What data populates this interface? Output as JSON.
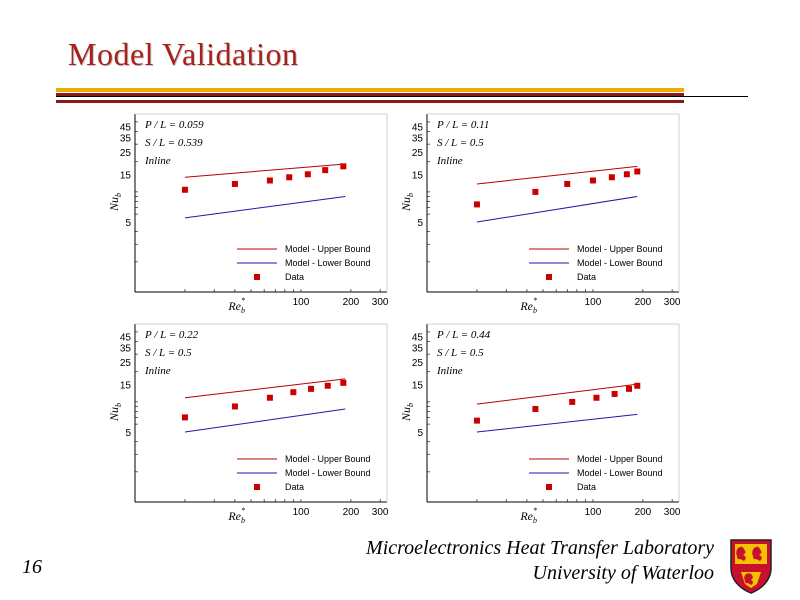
{
  "slide": {
    "title": "Model Validation",
    "page_number": "16",
    "footer_line1": "Microelectronics Heat Transfer Laboratory",
    "footer_line2": "University of Waterloo"
  },
  "colors": {
    "title": "#a8201a",
    "upper_bound": "#b80000",
    "lower_bound": "#1a1aaa",
    "data": "#cc0000",
    "rule_red": "#8b1a1a",
    "rule_gold": "#e8b000"
  },
  "chart_data": [
    {
      "type": "scatter",
      "annotations": [
        "P / L = 0.059",
        "S / L = 0.539",
        "Inline"
      ],
      "xlabel": "Re_b^*",
      "ylabel": "Nu_b",
      "xticks": [
        "100",
        "200",
        "300"
      ],
      "yticks": [
        "5",
        "15",
        "25",
        "35",
        "45"
      ],
      "legend": [
        "Model - Upper Bound",
        "Model - Lower Bound",
        "Data"
      ],
      "legend_position": "bottom-right",
      "grid": false,
      "series": [
        {
          "name": "Model - Upper Bound",
          "x": [
            20,
            185
          ],
          "y": [
            14,
            19
          ]
        },
        {
          "name": "Model - Lower Bound",
          "x": [
            20,
            185
          ],
          "y": [
            5.5,
            9
          ]
        },
        {
          "name": "Data",
          "x": [
            20,
            40,
            65,
            85,
            110,
            140,
            180
          ],
          "y": [
            10.5,
            12,
            13,
            14,
            15,
            16.5,
            18
          ]
        }
      ]
    },
    {
      "type": "scatter",
      "annotations": [
        "P / L = 0.11",
        "S / L = 0.5",
        "Inline"
      ],
      "xlabel": "Re_b^*",
      "ylabel": "Nu_b",
      "xticks": [
        "100",
        "200",
        "300"
      ],
      "yticks": [
        "5",
        "15",
        "25",
        "35",
        "45"
      ],
      "legend": [
        "Model - Upper Bound",
        "Model - Lower Bound",
        "Data"
      ],
      "legend_position": "bottom-right",
      "grid": false,
      "series": [
        {
          "name": "Model - Upper Bound",
          "x": [
            20,
            185
          ],
          "y": [
            12,
            18
          ]
        },
        {
          "name": "Model - Lower Bound",
          "x": [
            20,
            185
          ],
          "y": [
            5,
            9
          ]
        },
        {
          "name": "Data",
          "x": [
            20,
            45,
            70,
            100,
            130,
            160,
            185
          ],
          "y": [
            7.5,
            10,
            12,
            13,
            14,
            15,
            16
          ]
        }
      ]
    },
    {
      "type": "scatter",
      "annotations": [
        "P / L = 0.22",
        "S / L = 0.5",
        "Inline"
      ],
      "xlabel": "Re_b^*",
      "ylabel": "Nu_b",
      "xticks": [
        "100",
        "200",
        "300"
      ],
      "yticks": [
        "5",
        "15",
        "25",
        "35",
        "45"
      ],
      "legend": [
        "Model - Upper Bound",
        "Model - Lower Bound",
        "Data"
      ],
      "legend_position": "bottom-right",
      "grid": false,
      "series": [
        {
          "name": "Model - Upper Bound",
          "x": [
            20,
            185
          ],
          "y": [
            11,
            17
          ]
        },
        {
          "name": "Model - Lower Bound",
          "x": [
            20,
            185
          ],
          "y": [
            5,
            8.5
          ]
        },
        {
          "name": "Data",
          "x": [
            20,
            40,
            65,
            90,
            115,
            145,
            180
          ],
          "y": [
            7,
            9,
            11,
            12.5,
            13.5,
            14.5,
            15.5
          ]
        }
      ]
    },
    {
      "type": "scatter",
      "annotations": [
        "P / L = 0.44",
        "S / L = 0.5",
        "Inline"
      ],
      "xlabel": "Re_b^*",
      "ylabel": "Nu_b",
      "xticks": [
        "100",
        "200",
        "300"
      ],
      "yticks": [
        "5",
        "15",
        "25",
        "35",
        "45"
      ],
      "legend": [
        "Model - Upper Bound",
        "Model - Lower Bound",
        "Data"
      ],
      "legend_position": "bottom-right",
      "grid": false,
      "series": [
        {
          "name": "Model - Upper Bound",
          "x": [
            20,
            185
          ],
          "y": [
            9.5,
            15
          ]
        },
        {
          "name": "Model - Lower Bound",
          "x": [
            20,
            185
          ],
          "y": [
            5,
            7.5
          ]
        },
        {
          "name": "Data",
          "x": [
            20,
            45,
            75,
            105,
            135,
            165,
            185
          ],
          "y": [
            6.5,
            8.5,
            10,
            11,
            12,
            13.5,
            14.5
          ]
        }
      ]
    }
  ]
}
